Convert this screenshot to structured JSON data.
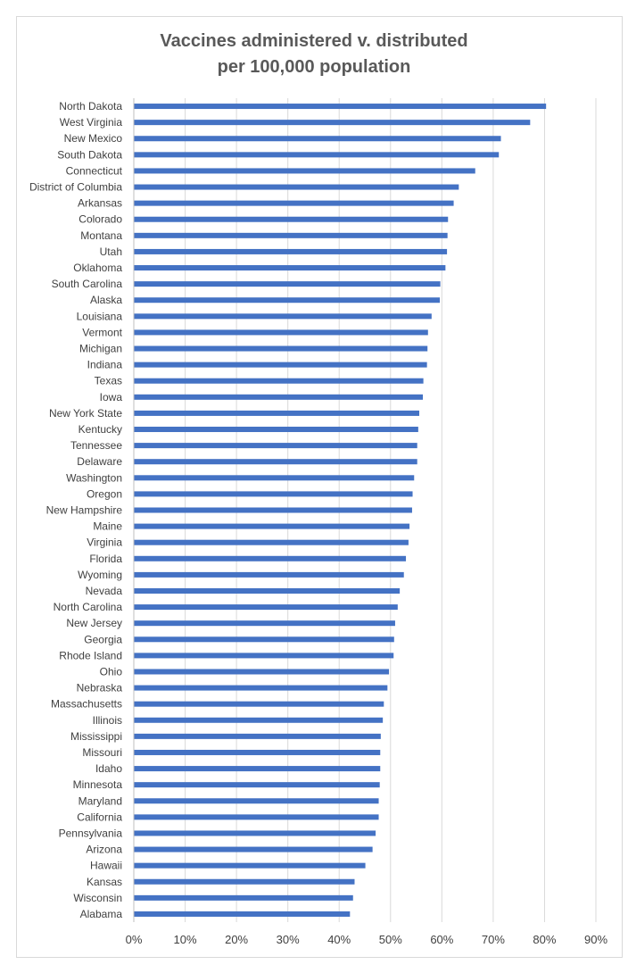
{
  "chart_data": {
    "type": "bar",
    "orientation": "horizontal",
    "title_line1": "Vaccines administered v. distributed",
    "title_line2": "per 100,000 population",
    "xlabel": "",
    "ylabel": "",
    "xlim": [
      0,
      0.9
    ],
    "xticks": [
      "0%",
      "10%",
      "20%",
      "30%",
      "40%",
      "50%",
      "60%",
      "70%",
      "80%",
      "90%"
    ],
    "grid": true,
    "legend": "none",
    "bar_color": "#4472c4",
    "categories": [
      "North Dakota",
      "West Virginia",
      "New Mexico",
      "South Dakota",
      "Connecticut",
      "District of Columbia",
      "Arkansas",
      "Colorado",
      "Montana",
      "Utah",
      "Oklahoma",
      "South Carolina",
      "Alaska",
      "Louisiana",
      "Vermont",
      "Michigan",
      "Indiana",
      "Texas",
      "Iowa",
      "New York State",
      "Kentucky",
      "Tennessee",
      "Delaware",
      "Washington",
      "Oregon",
      "New Hampshire",
      "Maine",
      "Virginia",
      "Florida",
      "Wyoming",
      "Nevada",
      "North Carolina",
      "New Jersey",
      "Georgia",
      "Rhode Island",
      "Ohio",
      "Nebraska",
      "Massachusetts",
      "Illinois",
      "Mississippi",
      "Missouri",
      "Idaho",
      "Minnesota",
      "Maryland",
      "California",
      "Pennsylvania",
      "Arizona",
      "Hawaii",
      "Kansas",
      "Wisconsin",
      "Alabama"
    ],
    "values": [
      0.803,
      0.772,
      0.715,
      0.711,
      0.665,
      0.633,
      0.623,
      0.612,
      0.611,
      0.61,
      0.607,
      0.597,
      0.596,
      0.58,
      0.573,
      0.572,
      0.571,
      0.564,
      0.563,
      0.556,
      0.554,
      0.552,
      0.552,
      0.546,
      0.543,
      0.542,
      0.537,
      0.535,
      0.53,
      0.526,
      0.518,
      0.514,
      0.509,
      0.507,
      0.506,
      0.497,
      0.494,
      0.487,
      0.485,
      0.481,
      0.48,
      0.48,
      0.479,
      0.477,
      0.477,
      0.471,
      0.465,
      0.451,
      0.43,
      0.427,
      0.421
    ]
  }
}
